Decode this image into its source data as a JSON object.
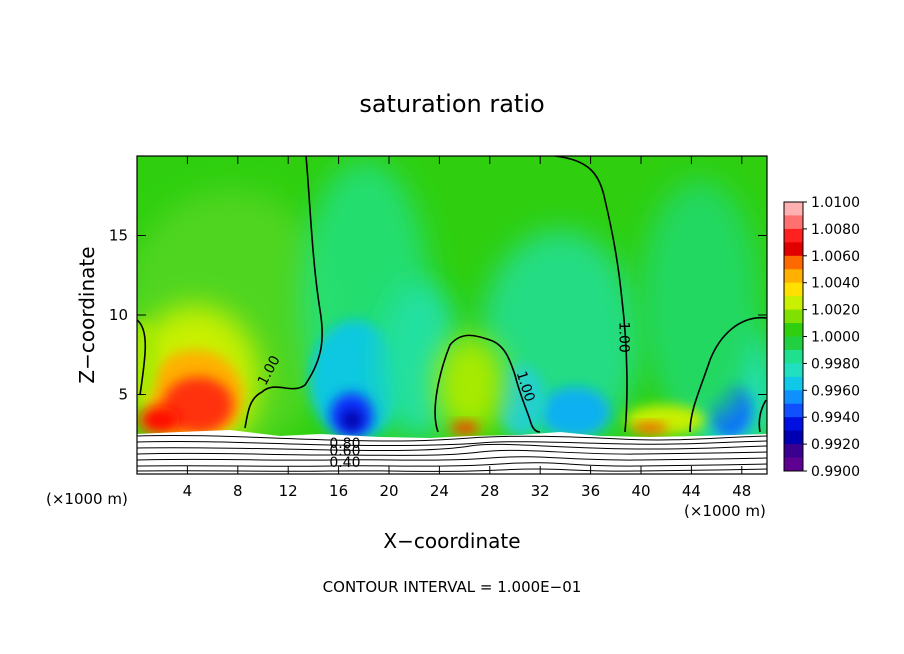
{
  "chart_data": {
    "type": "heatmap",
    "title": "saturation ratio",
    "xlabel": "X−coordinate",
    "ylabel": "Z−coordinate",
    "x_unit_left": "(×1000 m)",
    "x_unit_right": "(×1000 m)",
    "xlim": [
      0,
      50
    ],
    "ylim": [
      0,
      20
    ],
    "x_ticks": [
      4,
      8,
      12,
      16,
      20,
      24,
      28,
      32,
      36,
      40,
      44,
      48
    ],
    "y_ticks": [
      5,
      10,
      15
    ],
    "colorbar": {
      "levels": [
        "1.0100",
        "1.0080",
        "1.0060",
        "1.0040",
        "1.0020",
        "1.0000",
        "0.9980",
        "0.9960",
        "0.9940",
        "0.9920",
        "0.9900"
      ],
      "colors": [
        "#ffb0b0",
        "#ff7070",
        "#ff2020",
        "#e00000",
        "#ff6a00",
        "#ffb000",
        "#ffe000",
        "#c8f000",
        "#80e000",
        "#2fcf10",
        "#20d040",
        "#20e090",
        "#20e0c0",
        "#10c8e8",
        "#1090ff",
        "#1050ff",
        "#0010e0",
        "#0000b0",
        "#3a0090",
        "#600090"
      ]
    },
    "contour_labels": [
      {
        "text": "1.00",
        "x": 10.5,
        "z": 6.5,
        "rot": -62
      },
      {
        "text": "1.00",
        "x": 30.8,
        "z": 5.5,
        "rot": 72
      },
      {
        "text": "1.00",
        "x": 38.6,
        "z": 8.6,
        "rot": 90
      },
      {
        "text": "0.80",
        "x": 16.5,
        "z": 1.9,
        "rot": 0
      },
      {
        "text": "0.60",
        "x": 16.5,
        "z": 1.4,
        "rot": 0
      },
      {
        "text": "0.40",
        "x": 16.5,
        "z": 0.7,
        "rot": 0
      }
    ],
    "contour_interval": "CONTOUR INTERVAL = 1.000E−01"
  }
}
